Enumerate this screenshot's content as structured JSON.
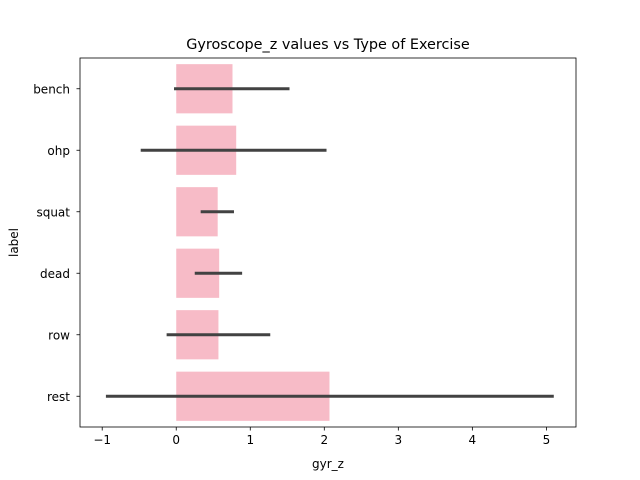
{
  "chart_data": {
    "type": "bar",
    "orientation": "horizontal",
    "title": "Gyroscope_z values vs Type of Exercise",
    "xlabel": "gyr_z",
    "ylabel": "label",
    "categories": [
      "bench",
      "ohp",
      "squat",
      "dead",
      "row",
      "rest"
    ],
    "values": [
      0.76,
      0.81,
      0.56,
      0.58,
      0.57,
      2.07
    ],
    "error_low": [
      -0.03,
      -0.48,
      0.33,
      0.25,
      -0.13,
      -0.95
    ],
    "error_high": [
      1.53,
      2.03,
      0.78,
      0.89,
      1.27,
      5.1
    ],
    "xlim": [
      -1.3,
      5.4
    ],
    "xticks": [
      "−1",
      "0",
      "1",
      "2",
      "3",
      "4",
      "5"
    ],
    "xtick_values": [
      -1,
      0,
      1,
      2,
      3,
      4,
      5
    ],
    "grid": false,
    "legend": "none",
    "colors": {
      "bar": "#f7bbc7",
      "error_bar": "#424242",
      "axis": "#000000"
    }
  }
}
